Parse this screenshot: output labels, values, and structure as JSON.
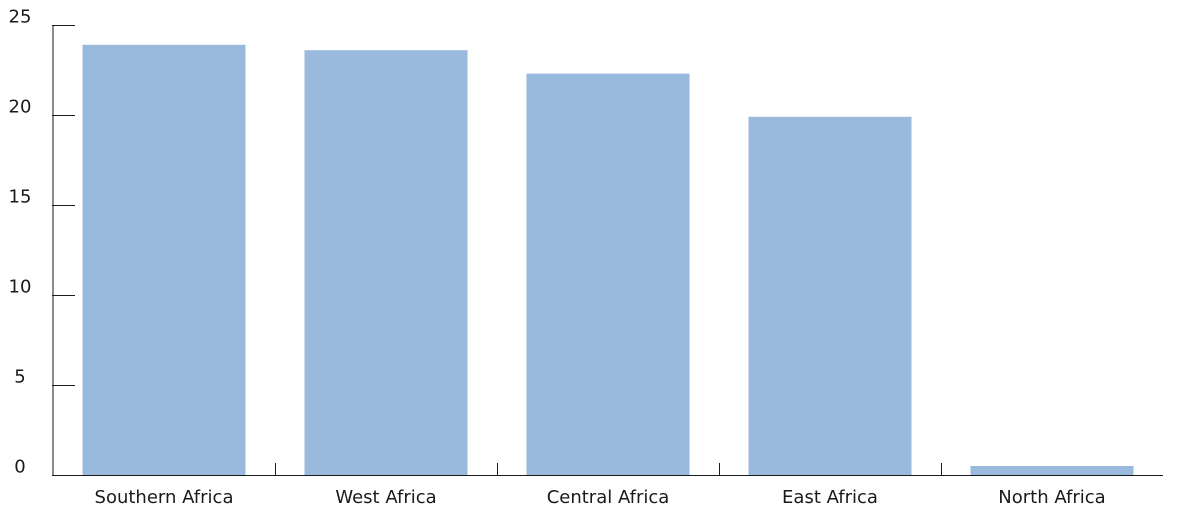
{
  "chart_data": {
    "type": "bar",
    "categories": [
      "Southern Africa",
      "West Africa",
      "Central Africa",
      "East Africa",
      "North Africa"
    ],
    "values": [
      23.9,
      23.6,
      22.3,
      19.9,
      0.5
    ],
    "ylim": [
      0,
      25
    ],
    "yticks": [
      "0",
      "5",
      "10",
      "15",
      "20",
      "25"
    ],
    "grid": false,
    "legend": "none",
    "bar_color": "#99b9dd",
    "axis_color": "#1a1a1a"
  }
}
